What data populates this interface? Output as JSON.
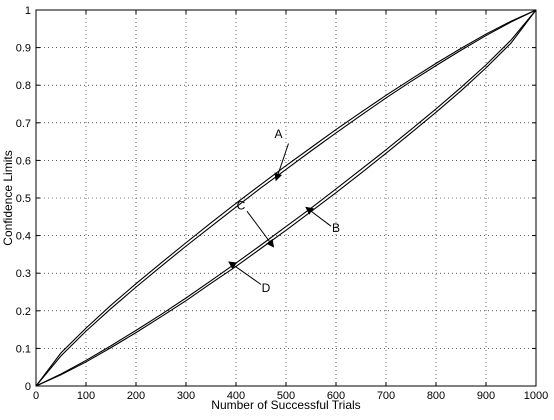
{
  "chart_data": {
    "type": "line",
    "title": "",
    "xlabel": "Number of Successful Trials",
    "ylabel": "Confidence Limits",
    "xlim": [
      0,
      1000
    ],
    "ylim": [
      0,
      1
    ],
    "grid": true,
    "x_ticks": [
      0,
      100,
      200,
      300,
      400,
      500,
      600,
      700,
      800,
      900,
      1000
    ],
    "y_ticks": [
      0,
      0.1,
      0.2,
      0.3,
      0.4,
      0.5,
      0.6,
      0.7,
      0.8,
      0.9,
      1
    ],
    "x": [
      0,
      50,
      100,
      150,
      200,
      250,
      300,
      350,
      400,
      450,
      500,
      550,
      600,
      650,
      700,
      750,
      800,
      850,
      900,
      950,
      1000
    ],
    "series": [
      {
        "values": [
          0,
          0.088,
          0.154,
          0.215,
          0.272,
          0.327,
          0.381,
          0.434,
          0.486,
          0.536,
          0.586,
          0.634,
          0.682,
          0.728,
          0.773,
          0.816,
          0.858,
          0.898,
          0.936,
          0.97,
          1.0
        ]
      },
      {
        "values": [
          0,
          0.08,
          0.146,
          0.206,
          0.263,
          0.318,
          0.372,
          0.424,
          0.476,
          0.527,
          0.576,
          0.625,
          0.673,
          0.72,
          0.766,
          0.81,
          0.852,
          0.893,
          0.932,
          0.968,
          1.0
        ]
      },
      {
        "values": [
          0,
          0.032,
          0.068,
          0.107,
          0.148,
          0.19,
          0.234,
          0.28,
          0.327,
          0.375,
          0.424,
          0.473,
          0.524,
          0.576,
          0.628,
          0.682,
          0.737,
          0.794,
          0.854,
          0.92,
          1.0
        ]
      },
      {
        "values": [
          0,
          0.03,
          0.064,
          0.102,
          0.142,
          0.184,
          0.227,
          0.273,
          0.318,
          0.366,
          0.414,
          0.464,
          0.514,
          0.566,
          0.619,
          0.673,
          0.728,
          0.785,
          0.846,
          0.912,
          1.0
        ]
      }
    ],
    "annotations": [
      {
        "label": "A",
        "text_at": [
          485,
          0.67
        ],
        "arrow_from": [
          505,
          0.645
        ],
        "arrow_to": [
          480,
          0.547
        ]
      },
      {
        "label": "B",
        "text_at": [
          600,
          0.42
        ],
        "arrow_from": [
          590,
          0.425
        ],
        "arrow_to": [
          540,
          0.475
        ]
      },
      {
        "label": "C",
        "text_at": [
          410,
          0.48
        ],
        "arrow_from": [
          422,
          0.465
        ],
        "arrow_to": [
          475,
          0.37
        ]
      },
      {
        "label": "D",
        "text_at": [
          460,
          0.26
        ],
        "arrow_from": [
          450,
          0.27
        ],
        "arrow_to": [
          386,
          0.33
        ]
      }
    ]
  }
}
